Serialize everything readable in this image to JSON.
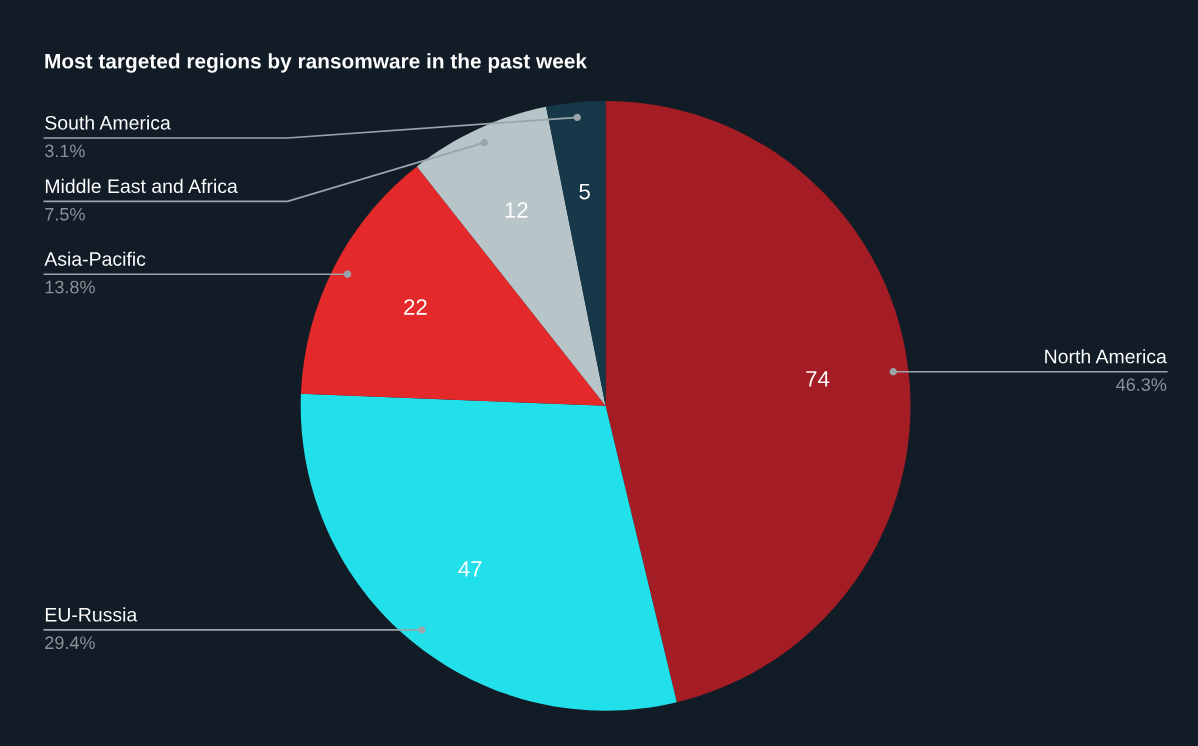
{
  "chart_data": {
    "type": "pie",
    "title": "Most targeted regions by ransomware in the past week",
    "categories": [
      "North America",
      "EU-Russia",
      "Asia-Pacific",
      "Middle East and Africa",
      "South America"
    ],
    "values": [
      74,
      47,
      22,
      12,
      5
    ],
    "colors": [
      "#a51d24",
      "#22e0ea",
      "#e4292b",
      "#b7c4c8",
      "#173849"
    ],
    "data_labels": true,
    "legend": false,
    "annotations": [
      {
        "text": "46.3%",
        "x": "North America"
      },
      {
        "text": "29.4%",
        "x": "EU-Russia"
      },
      {
        "text": "13.8%",
        "x": "Asia-Pacific"
      },
      {
        "text": "7.5%",
        "x": "Middle East and Africa"
      },
      {
        "text": "3.1%",
        "x": "South America"
      }
    ]
  }
}
